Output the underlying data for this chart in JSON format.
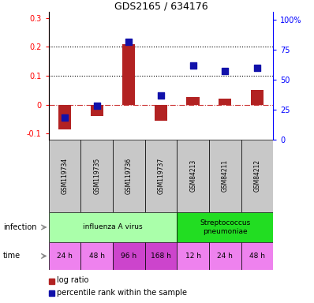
{
  "title": "GDS2165 / 634176",
  "samples": [
    "GSM119734",
    "GSM119735",
    "GSM119736",
    "GSM119737",
    "GSM84213",
    "GSM84211",
    "GSM84212"
  ],
  "log_ratio": [
    -0.085,
    -0.04,
    0.21,
    -0.055,
    0.025,
    0.02,
    0.05
  ],
  "percentile_rank": [
    0.18,
    0.28,
    0.82,
    0.37,
    0.62,
    0.57,
    0.6
  ],
  "bar_color": "#B22222",
  "dot_color": "#1111AA",
  "infection_groups": [
    {
      "label": "influenza A virus",
      "start": 0,
      "end": 4,
      "color": "#AAFFAA"
    },
    {
      "label": "Streptococcus\npneumoniae",
      "start": 4,
      "end": 7,
      "color": "#22DD22"
    }
  ],
  "time_labels": [
    "24 h",
    "48 h",
    "96 h",
    "168 h",
    "12 h",
    "24 h",
    "48 h"
  ],
  "time_colors": [
    "#EE82EE",
    "#EE82EE",
    "#CC44CC",
    "#CC44CC",
    "#EE82EE",
    "#EE82EE",
    "#EE82EE"
  ],
  "ylim_left": [
    -0.12,
    0.32
  ],
  "ylim_right": [
    0,
    1.0667
  ],
  "yticks_left": [
    -0.1,
    0.0,
    0.1,
    0.2,
    0.3
  ],
  "ytick_labels_left": [
    "-0.1",
    "0",
    "0.1",
    "0.2",
    "0.3"
  ],
  "yticks_right": [
    0,
    0.25,
    0.5,
    0.75,
    1.0
  ],
  "ytick_labels_right": [
    "0",
    "25",
    "50",
    "75",
    "100%"
  ],
  "hline_y": [
    0.1,
    0.2
  ],
  "zero_line_y": 0.0,
  "legend_bar": "log ratio",
  "legend_dot": "percentile rank within the sample",
  "bar_width": 0.4,
  "dot_size": 28
}
